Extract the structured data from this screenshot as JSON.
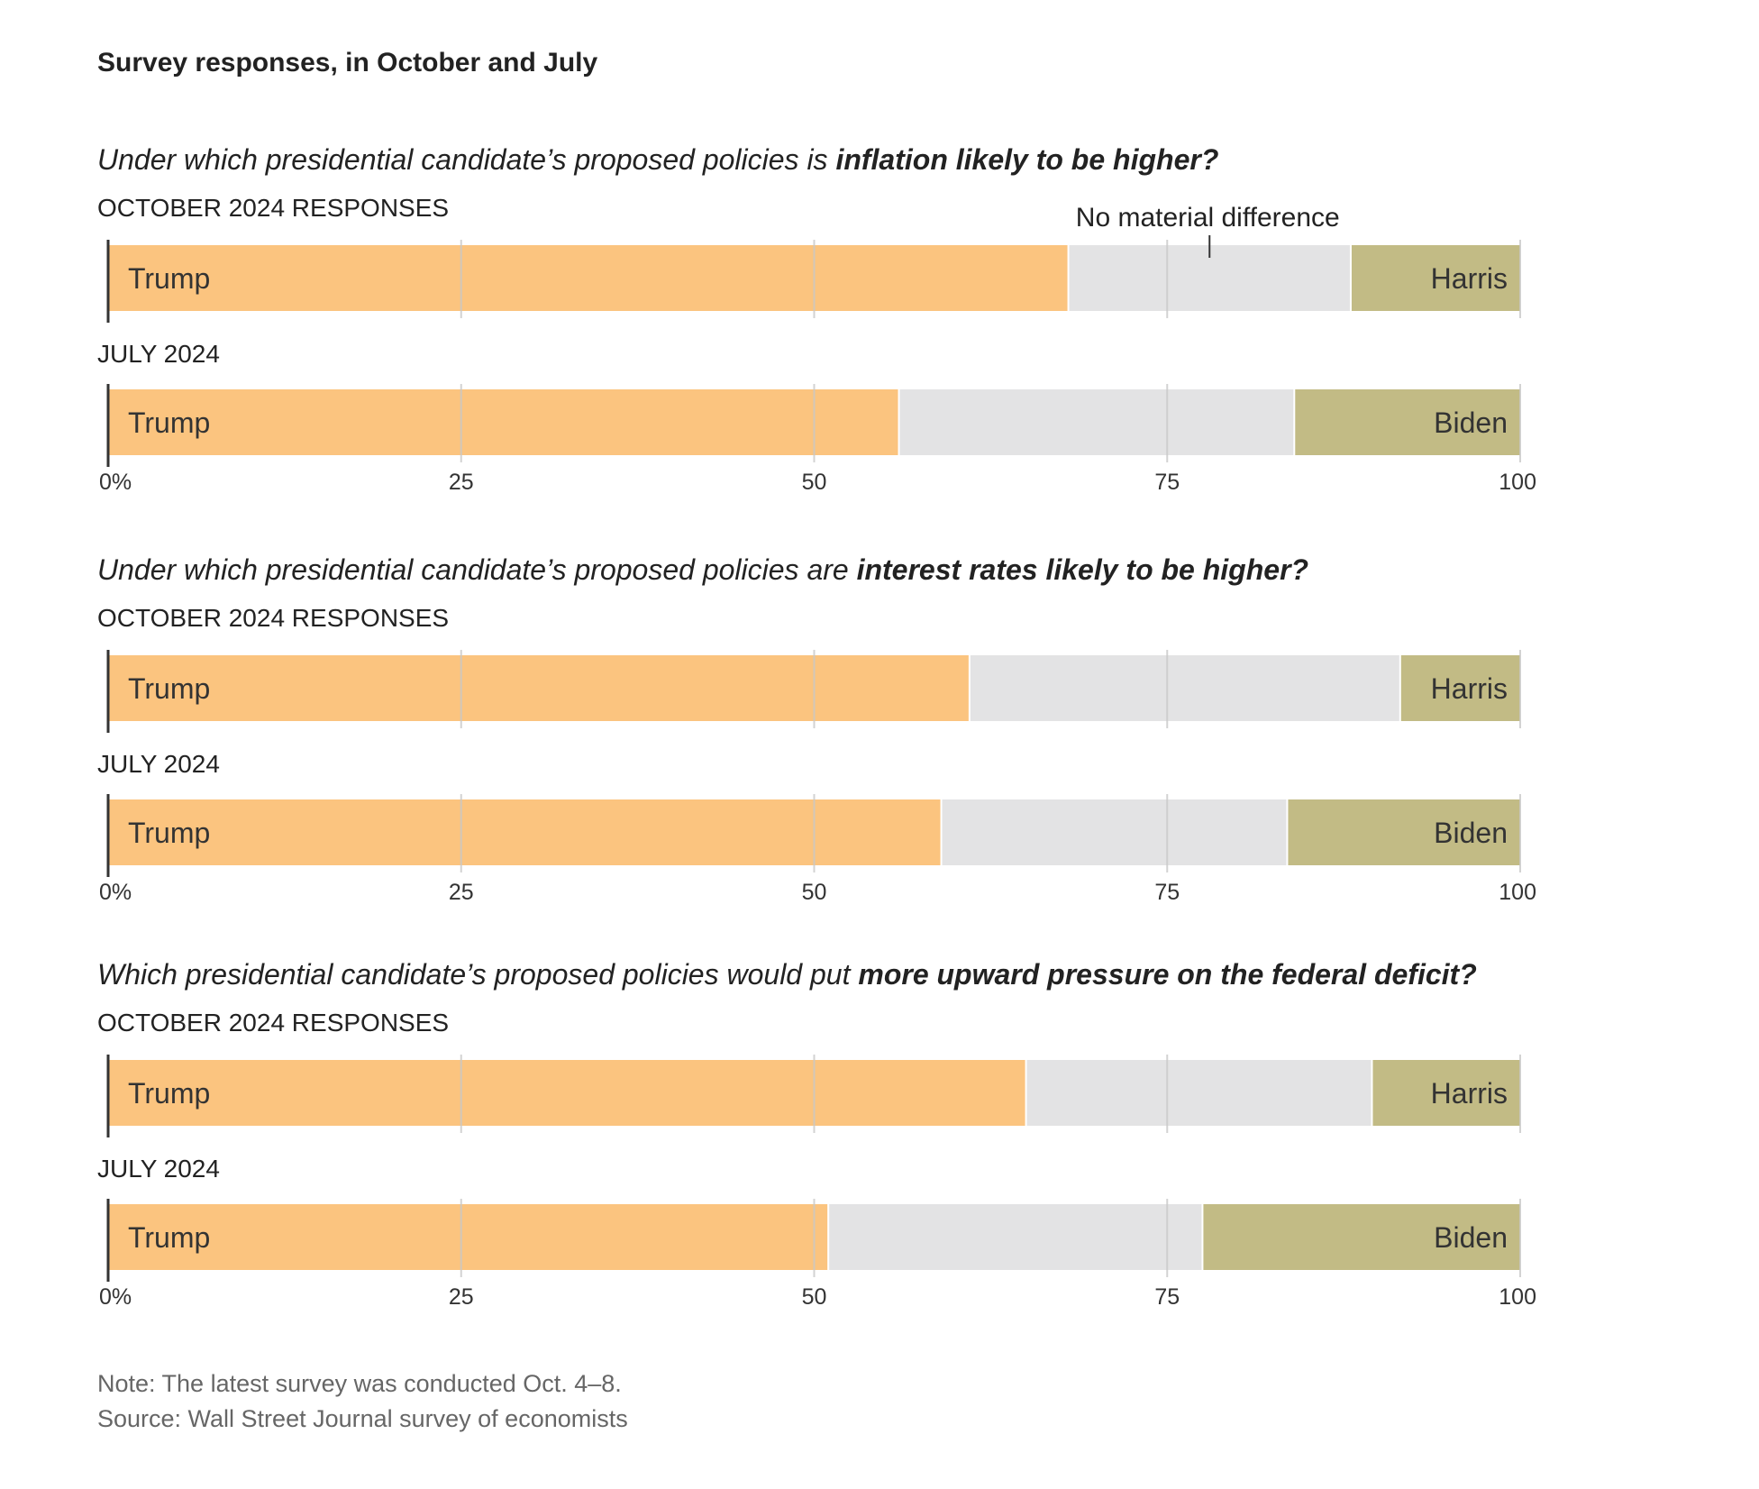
{
  "chart_data": {
    "type": "bar",
    "orientation": "horizontal",
    "stacked": true,
    "title": "Survey responses, in October and July",
    "x_ticks": [
      "0%",
      "25",
      "50",
      "75",
      "100"
    ],
    "xlim": [
      0,
      100
    ],
    "grid": true,
    "annotation": "No material difference",
    "colors": {
      "trump": "#fbc47f",
      "no_difference": "#e3e3e4",
      "other": "#c2bb85",
      "grid": "#c8c8c8",
      "axis": "#333333"
    },
    "panels": [
      {
        "question_prefix": "Under which presidential candidate’s proposed policies is ",
        "question_bold": "inflation likely to be higher?",
        "rows": [
          {
            "label": "OCTOBER 2024 RESPONSES",
            "left_name": "Trump",
            "right_name": "Harris",
            "values": [
              68,
              20,
              12
            ]
          },
          {
            "label": "JULY 2024",
            "left_name": "Trump",
            "right_name": "Biden",
            "values": [
              56,
              28,
              16
            ]
          }
        ]
      },
      {
        "question_prefix": "Under which presidential candidate’s proposed policies are ",
        "question_bold": "interest rates likely to be higher?",
        "rows": [
          {
            "label": "OCTOBER 2024 RESPONSES",
            "left_name": "Trump",
            "right_name": "Harris",
            "values": [
              61,
              30.5,
              8.5
            ]
          },
          {
            "label": "JULY 2024",
            "left_name": "Trump",
            "right_name": "Biden",
            "values": [
              59,
              24.5,
              16.5
            ]
          }
        ]
      },
      {
        "question_prefix": "Which presidential candidate’s proposed policies would put ",
        "question_bold": "more upward pressure on the federal deficit?",
        "rows": [
          {
            "label": "OCTOBER 2024 RESPONSES",
            "left_name": "Trump",
            "right_name": "Harris",
            "values": [
              65,
              24.5,
              10.5
            ]
          },
          {
            "label": "JULY 2024",
            "left_name": "Trump",
            "right_name": "Biden",
            "values": [
              51,
              26.5,
              22.5
            ]
          }
        ]
      }
    ],
    "note": "Note: The latest survey was conducted Oct. 4–8.",
    "source": "Source: Wall Street Journal survey of economists"
  }
}
